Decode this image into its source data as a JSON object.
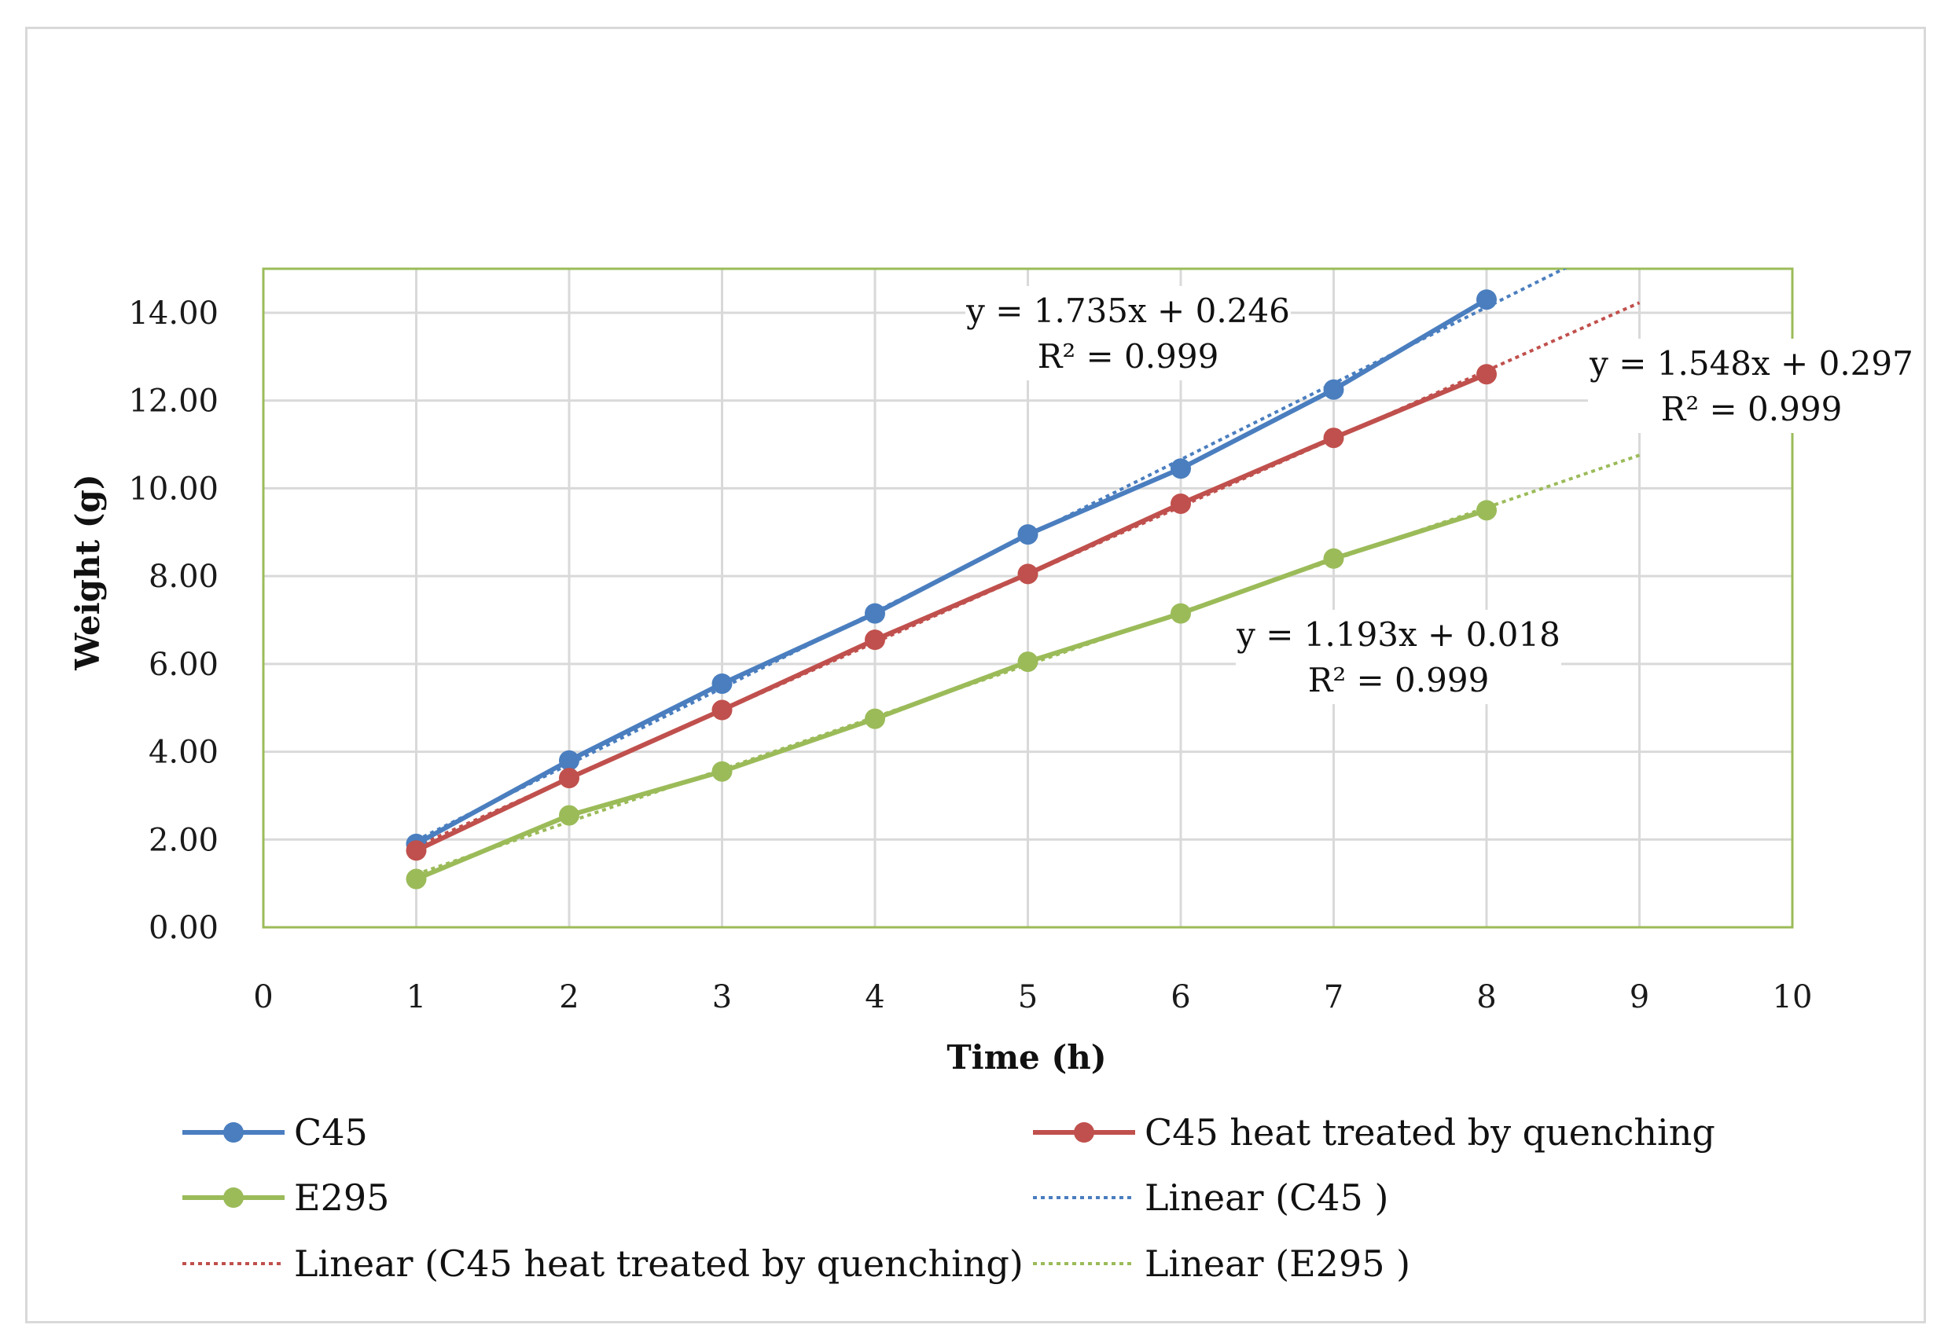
{
  "colors": {
    "c45": "#4a7ebf",
    "c45_quenched": "#c0504d",
    "e295": "#9bbb59",
    "grid": "#d9d9d9",
    "plot_border": "#9bbb59",
    "frame": "#d9d9d9"
  },
  "chart_data": {
    "type": "line",
    "title": "",
    "xlabel": "Time (h)",
    "ylabel": "Weight (g)",
    "xlim": [
      0,
      10
    ],
    "ylim": [
      0,
      14
    ],
    "x_ticks": [
      "0",
      "1",
      "2",
      "3",
      "4",
      "5",
      "6",
      "7",
      "8",
      "9",
      "10"
    ],
    "y_ticks": [
      "0.00",
      "2.00",
      "4.00",
      "6.00",
      "8.00",
      "10.00",
      "12.00",
      "14.00"
    ],
    "grid": true,
    "legend_position": "bottom",
    "x": [
      1,
      2,
      3,
      4,
      5,
      6,
      7,
      8
    ],
    "series": [
      {
        "name": "C45",
        "color_key": "c45",
        "values": [
          1.9,
          3.8,
          5.55,
          7.15,
          8.95,
          10.45,
          12.25,
          14.3
        ]
      },
      {
        "name": "C45 heat treated by quenching",
        "color_key": "c45_quenched",
        "values": [
          1.75,
          3.4,
          4.95,
          6.55,
          8.05,
          9.65,
          11.15,
          12.6
        ]
      },
      {
        "name": "E295",
        "color_key": "e295",
        "values": [
          1.1,
          2.55,
          3.55,
          4.75,
          6.05,
          7.15,
          8.4,
          9.5
        ]
      }
    ],
    "trendlines": [
      {
        "name": "Linear (C45 )",
        "color_key": "c45",
        "slope": 1.735,
        "intercept": 0.246,
        "x_range": [
          1,
          9
        ],
        "equation": "y = 1.735x + 0.246",
        "r2": "R² = 0.999"
      },
      {
        "name": "Linear (C45 heat treated by quenching)",
        "color_key": "c45_quenched",
        "slope": 1.548,
        "intercept": 0.297,
        "x_range": [
          1,
          9
        ],
        "equation": "y = 1.548x + 0.297",
        "r2": "R² = 0.999"
      },
      {
        "name": "Linear (E295 )",
        "color_key": "e295",
        "slope": 1.193,
        "intercept": 0.018,
        "x_range": [
          1,
          9
        ],
        "equation": "y = 1.193x + 0.018",
        "r2": "R² = 0.999"
      }
    ]
  }
}
